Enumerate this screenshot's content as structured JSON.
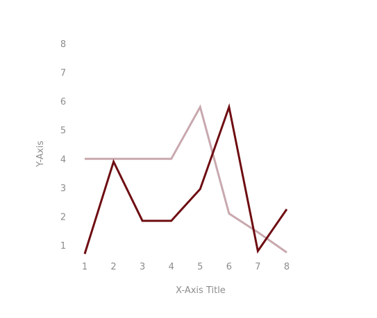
{
  "chart_data": {
    "type": "line",
    "title": "",
    "xlabel": "X-Axis Title",
    "ylabel": "Y-Axis",
    "x": [
      1,
      2,
      3,
      4,
      5,
      6,
      7,
      8
    ],
    "x_ticks": [
      "1",
      "2",
      "3",
      "4",
      "5",
      "6",
      "7",
      "8"
    ],
    "y_ticks": [
      "1",
      "2",
      "3",
      "4",
      "5",
      "6",
      "7",
      "8"
    ],
    "xlim": [
      1,
      8
    ],
    "ylim": [
      0.6,
      8
    ],
    "grid": false,
    "legend": "none",
    "series": [
      {
        "color": "#c8a8ae",
        "values": [
          4,
          4,
          4,
          4,
          5.8,
          2.1,
          1.45,
          0.75
        ]
      },
      {
        "color": "#6e0d12",
        "values": [
          0.7,
          3.9,
          1.85,
          1.85,
          2.95,
          5.8,
          0.8,
          2.25
        ]
      }
    ]
  }
}
